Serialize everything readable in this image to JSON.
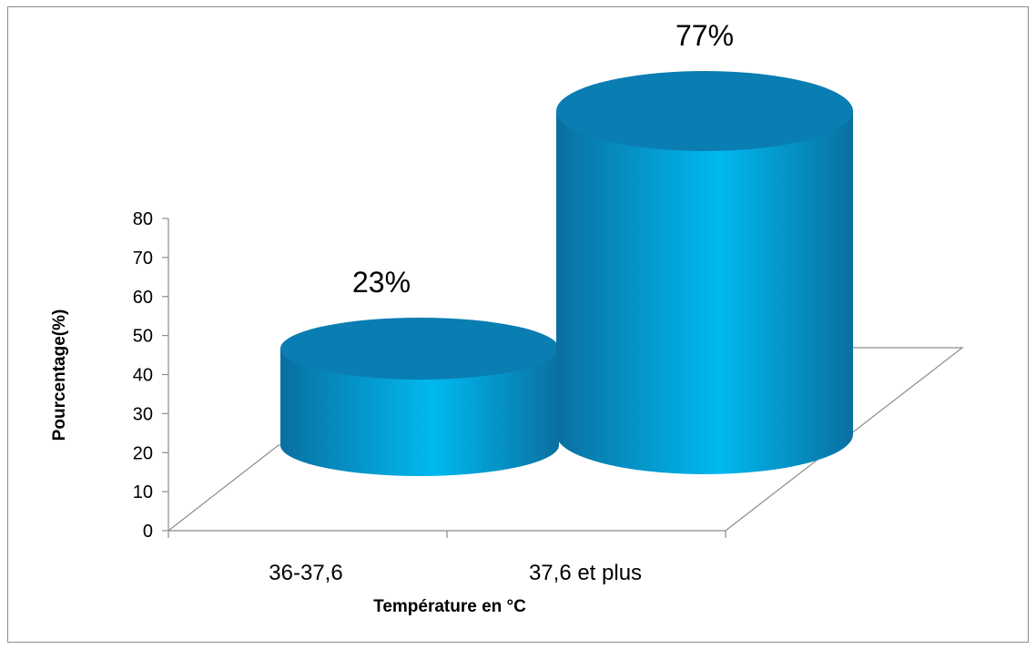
{
  "chart_data": {
    "type": "bar",
    "style": "3d-cylinder",
    "categories": [
      "36-37,6",
      "37,6 et plus"
    ],
    "values": [
      23,
      77
    ],
    "data_labels": [
      "23%",
      "77%"
    ],
    "xlabel": "Température en °C",
    "ylabel": "Pourcentage(%)",
    "ylim": [
      0,
      80
    ],
    "yticks": [
      "0",
      "10",
      "20",
      "30",
      "40",
      "50",
      "60",
      "70",
      "80"
    ],
    "grid": false,
    "legend": "none",
    "colors": {
      "bar_side_light": "#00b9f0",
      "bar_side_dark": "#0a6fa0",
      "bar_top": "#0a7db2",
      "axis": "#8c8c8c"
    }
  }
}
